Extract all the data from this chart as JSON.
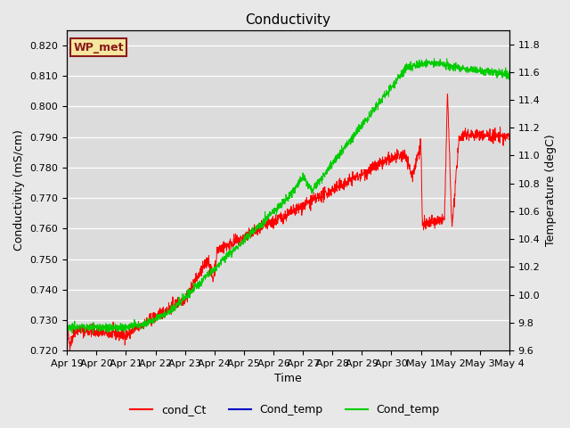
{
  "title": "Conductivity",
  "ylabel_left": "Conductivity (mS/cm)",
  "ylabel_right": "Temperature (degC)",
  "xlabel": "Time",
  "ylim_left": [
    0.72,
    0.825
  ],
  "ylim_right": [
    9.6,
    11.9
  ],
  "yticks_left": [
    0.72,
    0.73,
    0.74,
    0.75,
    0.76,
    0.77,
    0.78,
    0.79,
    0.8,
    0.81,
    0.82
  ],
  "yticks_right": [
    9.6,
    9.8,
    10.0,
    10.2,
    10.4,
    10.6,
    10.8,
    11.0,
    11.2,
    11.4,
    11.6,
    11.8
  ],
  "xtick_labels": [
    "Apr 19",
    "Apr 20",
    "Apr 21",
    "Apr 22",
    "Apr 23",
    "Apr 24",
    "Apr 25",
    "Apr 26",
    "Apr 27",
    "Apr 28",
    "Apr 29",
    "Apr 30",
    "May 1",
    "May 2",
    "May 3",
    "May 4"
  ],
  "fig_bg_color": "#e8e8e8",
  "plot_bg_color": "#dcdcdc",
  "grid_color": "#ffffff",
  "annotation_text": "WP_met",
  "annotation_bg": "#f5e6a0",
  "annotation_border": "#8b1a1a",
  "line_red": "#ff0000",
  "line_blue": "#0000cc",
  "line_green": "#00cc00",
  "legend_labels": [
    "cond_Ct",
    "Cond_temp",
    "Cond_temp"
  ]
}
